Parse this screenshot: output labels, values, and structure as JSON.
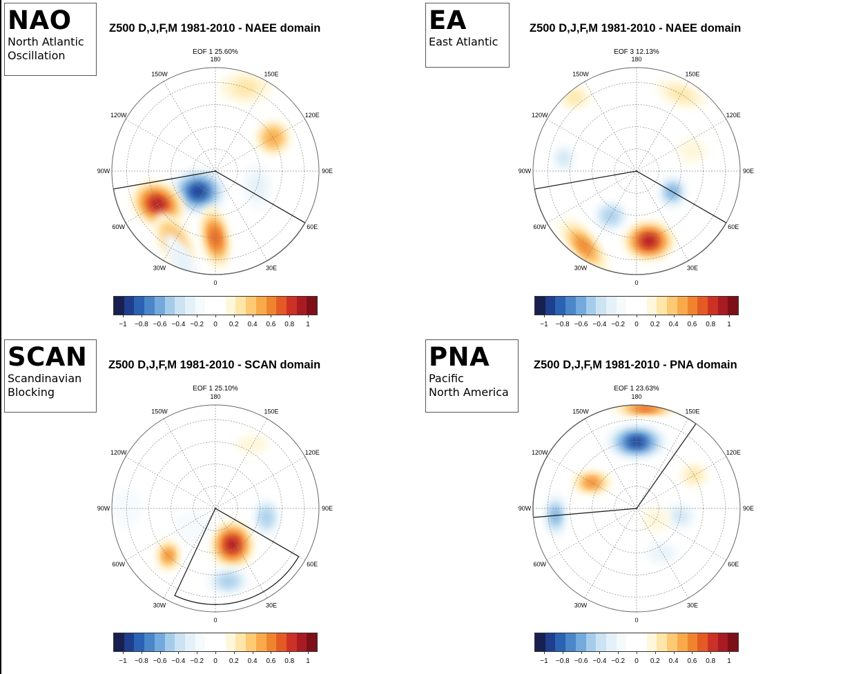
{
  "panels": [
    {
      "id": "nao",
      "abbr": "NAO",
      "full_name": "North Atlantic\nOscillation",
      "title": "Z500 D,J,F,M 1981-2010 - NAEE domain",
      "eof": "EOF 1 25.60%",
      "domain_sector": {
        "from_lon": -80,
        "to_lon": 60,
        "min_lat": 20
      },
      "anomalies": [
        {
          "lat": 72,
          "lon": -40,
          "value": -0.9,
          "width": 0.28,
          "height": 0.22,
          "rotate": 0
        },
        {
          "lat": 45,
          "lon": -60,
          "value": 0.9,
          "width": 0.26,
          "height": 0.2,
          "rotate": 30
        },
        {
          "lat": 45,
          "lon": 0,
          "value": 0.7,
          "width": 0.3,
          "height": 0.12,
          "rotate": 80
        },
        {
          "lat": 35,
          "lon": -30,
          "value": 0.5,
          "width": 0.3,
          "height": 0.14,
          "rotate": 60
        },
        {
          "lat": 30,
          "lon": 160,
          "value": 0.3,
          "width": 0.24,
          "height": 0.14,
          "rotate": 0
        },
        {
          "lat": 45,
          "lon": 120,
          "value": 0.5,
          "width": 0.16,
          "height": 0.16,
          "rotate": 0
        },
        {
          "lat": 60,
          "lon": 70,
          "value": -0.3,
          "width": 0.14,
          "height": 0.22,
          "rotate": 0
        },
        {
          "lat": 25,
          "lon": -20,
          "value": -0.3,
          "width": 0.3,
          "height": 0.1,
          "rotate": 60
        }
      ]
    },
    {
      "id": "ea",
      "abbr": "EA",
      "full_name": "East Atlantic",
      "title": "Z500 D,J,F,M 1981-2010 - NAEE domain",
      "eof": "EOF 3 12.13%",
      "domain_sector": {
        "from_lon": -80,
        "to_lon": 60,
        "min_lat": 20
      },
      "anomalies": [
        {
          "lat": 42,
          "lon": 10,
          "value": 0.9,
          "width": 0.24,
          "height": 0.18,
          "rotate": 0
        },
        {
          "lat": 28,
          "lon": -35,
          "value": 0.6,
          "width": 0.32,
          "height": 0.12,
          "rotate": 50
        },
        {
          "lat": 55,
          "lon": -30,
          "value": -0.5,
          "width": 0.16,
          "height": 0.14,
          "rotate": 0
        },
        {
          "lat": 62,
          "lon": 60,
          "value": -0.6,
          "width": 0.14,
          "height": 0.16,
          "rotate": 0
        },
        {
          "lat": 40,
          "lon": -100,
          "value": -0.4,
          "width": 0.1,
          "height": 0.12,
          "rotate": 0
        },
        {
          "lat": 30,
          "lon": 150,
          "value": 0.3,
          "width": 0.24,
          "height": 0.1,
          "rotate": 20
        },
        {
          "lat": 25,
          "lon": -140,
          "value": 0.3,
          "width": 0.14,
          "height": 0.1,
          "rotate": 0
        },
        {
          "lat": 50,
          "lon": 110,
          "value": 0.2,
          "width": 0.12,
          "height": 0.1,
          "rotate": 0
        }
      ]
    },
    {
      "id": "scan",
      "abbr": "SCAN",
      "full_name": "Scandinavian\nBlocking",
      "title": "Z500 D,J,F,M 1981-2010 - SCAN domain",
      "eof": "EOF 1 25.10%",
      "domain_sector": {
        "from_lon": -25,
        "to_lon": 60,
        "min_lat": 25
      },
      "anomalies": [
        {
          "lat": 63,
          "lon": 25,
          "value": 0.9,
          "width": 0.2,
          "height": 0.22,
          "rotate": 0
        },
        {
          "lat": 40,
          "lon": 10,
          "value": -0.5,
          "width": 0.2,
          "height": 0.12,
          "rotate": 0
        },
        {
          "lat": 45,
          "lon": -45,
          "value": 0.6,
          "width": 0.1,
          "height": 0.14,
          "rotate": 0
        },
        {
          "lat": 55,
          "lon": 80,
          "value": -0.5,
          "width": 0.12,
          "height": 0.18,
          "rotate": 0
        },
        {
          "lat": 70,
          "lon": -50,
          "value": -0.2,
          "width": 0.16,
          "height": 0.14,
          "rotate": 0
        },
        {
          "lat": 40,
          "lon": 150,
          "value": 0.2,
          "width": 0.14,
          "height": 0.08,
          "rotate": 0
        },
        {
          "lat": 30,
          "lon": -90,
          "value": -0.2,
          "width": 0.12,
          "height": 0.18,
          "rotate": 0
        }
      ]
    },
    {
      "id": "pna",
      "abbr": "PNA",
      "full_name": "Pacific\nNorth America",
      "title": "Z500 D,J,F,M 1981-2010 - PNA domain",
      "eof": "EOF 1 23.63%",
      "domain_sector": {
        "from_lon": 145,
        "to_lon": 275,
        "min_lat": 20
      },
      "anomalies": [
        {
          "lat": 45,
          "lon": 180,
          "value": -0.9,
          "width": 0.3,
          "height": 0.16,
          "rotate": 0
        },
        {
          "lat": 55,
          "lon": -120,
          "value": 0.6,
          "width": 0.18,
          "height": 0.1,
          "rotate": 0
        },
        {
          "lat": 35,
          "lon": -85,
          "value": -0.6,
          "width": 0.1,
          "height": 0.22,
          "rotate": 0
        },
        {
          "lat": 22,
          "lon": 175,
          "value": 0.7,
          "width": 0.32,
          "height": 0.05,
          "rotate": 0
        },
        {
          "lat": 60,
          "lon": 80,
          "value": -0.4,
          "width": 0.14,
          "height": 0.12,
          "rotate": 0
        },
        {
          "lat": 55,
          "lon": 30,
          "value": -0.3,
          "width": 0.16,
          "height": 0.1,
          "rotate": 0
        },
        {
          "lat": 45,
          "lon": 120,
          "value": 0.3,
          "width": 0.12,
          "height": 0.1,
          "rotate": 0
        },
        {
          "lat": 75,
          "lon": 60,
          "value": 0.2,
          "width": 0.12,
          "height": 0.1,
          "rotate": 0
        }
      ]
    }
  ],
  "longitude_labels": [
    "180",
    "150E",
    "120E",
    "90E",
    "60E",
    "30E",
    "0",
    "30W",
    "60W",
    "90W",
    "120W",
    "150W"
  ],
  "colorbar": {
    "colors": [
      "#18204f",
      "#1f3e8e",
      "#2b62b3",
      "#4a86c8",
      "#73a9dc",
      "#a5cdeb",
      "#cbe3f3",
      "#e4f1f9",
      "#f5fafd",
      "#ffffff",
      "#ffffff",
      "#fff7dc",
      "#ffe6a8",
      "#fdca73",
      "#f9a94a",
      "#f0842d",
      "#e45a25",
      "#cc3125",
      "#a81b22",
      "#7d0f19"
    ],
    "ticks": [
      "−1",
      "−0.8",
      "−0.6",
      "−0.4",
      "−0.2",
      "0",
      "0.2",
      "0.4",
      "0.6",
      "0.8",
      "1"
    ]
  }
}
